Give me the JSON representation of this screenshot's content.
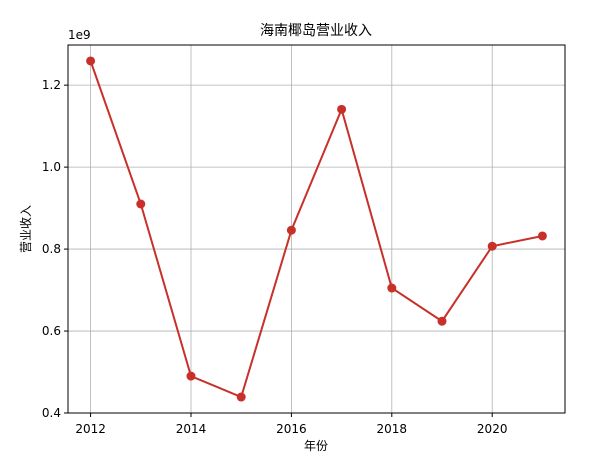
{
  "chart_data": {
    "type": "line",
    "title": "海南椰岛营业收入",
    "x_label": "年份",
    "y_label": "营业收入",
    "y_offset_label": "1e9",
    "x": [
      2012,
      2013,
      2014,
      2015,
      2016,
      2017,
      2018,
      2019,
      2020,
      2021
    ],
    "series": [
      {
        "name": "营业收入",
        "color": "#c8302a",
        "values": [
          1.259,
          0.91,
          0.49,
          0.439,
          0.846,
          1.141,
          0.705,
          0.624,
          0.807,
          0.832
        ]
      }
    ],
    "xlim": [
      2011.55,
      2021.45
    ],
    "xticks": [
      2012,
      2014,
      2016,
      2018,
      2020
    ],
    "ylim": [
      0.4,
      1.298
    ],
    "yticks": [
      0.4,
      0.6,
      0.8,
      1.0,
      1.2
    ],
    "grid": true
  }
}
